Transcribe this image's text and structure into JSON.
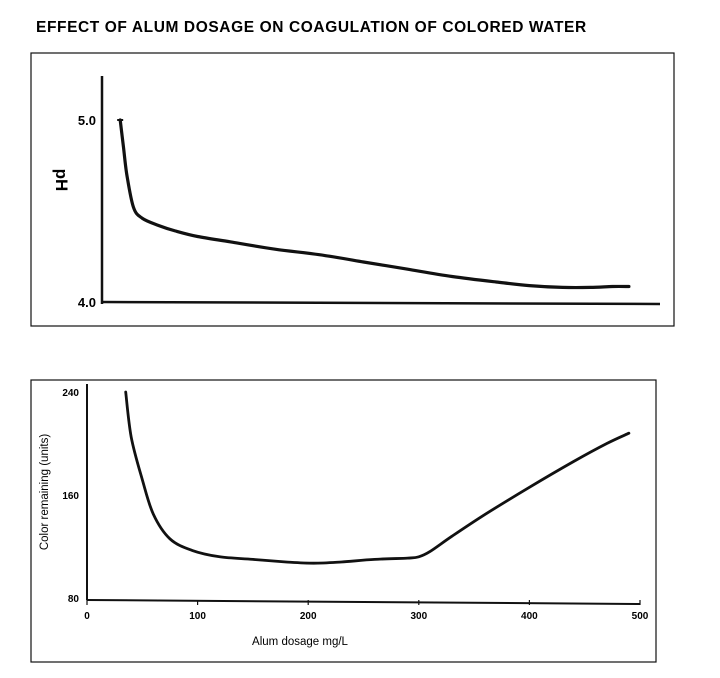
{
  "title": "EFFECT OF ALUM DOSAGE ON COAGULATION OF COLORED WATER",
  "chart_data": [
    {
      "type": "line",
      "title": "",
      "xlabel": "",
      "ylabel": "pH",
      "ylim": [
        4.0,
        5.2
      ],
      "xlim": [
        0,
        500
      ],
      "yticks": [
        "5.0",
        "4.0"
      ],
      "grid": false,
      "series": [
        {
          "x": [
            30,
            33,
            36,
            42,
            50,
            65,
            80,
            100,
            130,
            170,
            210,
            250,
            290,
            330,
            370,
            400,
            430,
            455,
            475,
            490
          ],
          "values": [
            5.0,
            4.85,
            4.7,
            4.52,
            4.46,
            4.42,
            4.39,
            4.36,
            4.33,
            4.29,
            4.26,
            4.22,
            4.18,
            4.14,
            4.11,
            4.09,
            4.08,
            4.08,
            4.085,
            4.085
          ]
        }
      ]
    },
    {
      "type": "line",
      "title": "",
      "xlabel": "Alum dosage mg/L",
      "ylabel": "Color remaining (units)",
      "ylim": [
        80,
        240
      ],
      "xlim": [
        0,
        500
      ],
      "xticks": [
        "0",
        "100",
        "200",
        "300",
        "400",
        "500"
      ],
      "yticks": [
        "240",
        "160",
        "80"
      ],
      "grid": false,
      "series": [
        {
          "x": [
            35,
            40,
            50,
            60,
            75,
            95,
            120,
            150,
            180,
            205,
            230,
            260,
            290,
            300,
            310,
            330,
            360,
            400,
            440,
            470,
            490
          ],
          "values": [
            240,
            205,
            172,
            145,
            126,
            117,
            112,
            110,
            108,
            107,
            108,
            110,
            111,
            112,
            116,
            128,
            145,
            166,
            186,
            200,
            208
          ]
        }
      ]
    }
  ]
}
